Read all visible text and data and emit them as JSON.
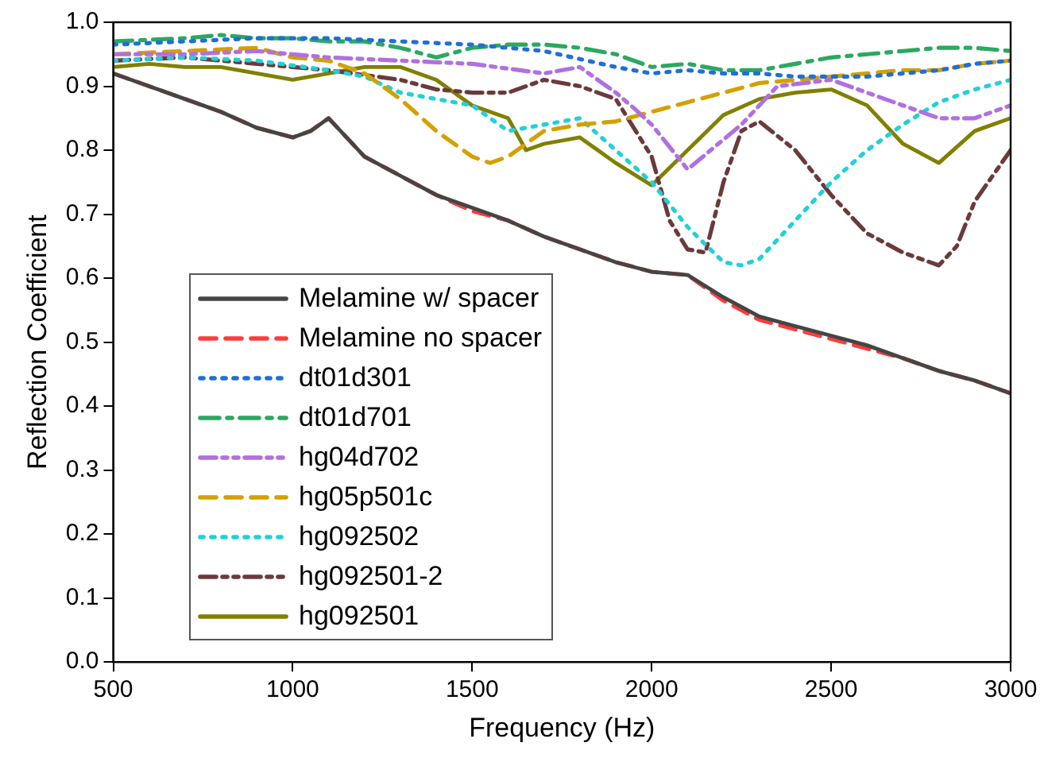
{
  "chart_data": {
    "type": "line",
    "xlabel": "Frequency (Hz)",
    "ylabel": "Reflection Coefficient",
    "xlim": [
      500,
      3000
    ],
    "xticks": [
      500,
      1000,
      1500,
      2000,
      2500,
      3000
    ],
    "ylim": [
      0,
      1
    ],
    "yticks": [
      {
        "value": 0,
        "label": "0.0"
      },
      0.1,
      0.2,
      0.3,
      0.4,
      0.5,
      0.6,
      0.7,
      0.8,
      0.9,
      {
        "value": 1,
        "label": "1.0"
      }
    ],
    "grid": false,
    "legend": "bottom left",
    "marker": "none",
    "series": [
      {
        "name": "Melamine w/ spacer",
        "color": "#454545",
        "line_style": "solid",
        "x": [
          500,
          600,
          700,
          800,
          900,
          1000,
          1050,
          1100,
          1150,
          1200,
          1300,
          1400,
          1500,
          1600,
          1700,
          1800,
          1900,
          2000,
          2100,
          2200,
          2300,
          2400,
          2500,
          2600,
          2700,
          2800,
          2900,
          3000
        ],
        "values": [
          0.92,
          0.9,
          0.88,
          0.86,
          0.835,
          0.82,
          0.83,
          0.85,
          0.82,
          0.79,
          0.76,
          0.73,
          0.71,
          0.69,
          0.665,
          0.645,
          0.625,
          0.61,
          0.605,
          0.57,
          0.54,
          0.525,
          0.51,
          0.495,
          0.475,
          0.455,
          0.44,
          0.42
        ]
      },
      {
        "name": "Melamine no spacer",
        "color": "#ff3b3b",
        "line_style": "dashed",
        "x": [
          500,
          600,
          700,
          800,
          900,
          1000,
          1050,
          1100,
          1150,
          1200,
          1300,
          1400,
          1500,
          1600,
          1700,
          1800,
          1900,
          2000,
          2100,
          2200,
          2300,
          2400,
          2500,
          2600,
          2700,
          2800,
          2900,
          3000
        ],
        "values": [
          0.92,
          0.9,
          0.88,
          0.86,
          0.835,
          0.82,
          0.83,
          0.85,
          0.82,
          0.79,
          0.76,
          0.73,
          0.705,
          0.69,
          0.665,
          0.645,
          0.625,
          0.61,
          0.605,
          0.565,
          0.535,
          0.52,
          0.505,
          0.49,
          0.475,
          0.455,
          0.44,
          0.42
        ]
      },
      {
        "name": "dt01d301",
        "color": "#1f6fd6",
        "line_style": "dotted",
        "x": [
          500,
          700,
          900,
          1100,
          1300,
          1500,
          1700,
          1900,
          2000,
          2100,
          2200,
          2300,
          2400,
          2500,
          2600,
          2700,
          2800,
          2900,
          3000
        ],
        "values": [
          0.965,
          0.97,
          0.975,
          0.975,
          0.97,
          0.965,
          0.955,
          0.93,
          0.92,
          0.925,
          0.92,
          0.92,
          0.915,
          0.915,
          0.915,
          0.92,
          0.925,
          0.935,
          0.94
        ]
      },
      {
        "name": "dt01d701",
        "color": "#2ca860",
        "line_style": "dashdot",
        "x": [
          500,
          700,
          800,
          900,
          1000,
          1100,
          1200,
          1300,
          1400,
          1500,
          1600,
          1700,
          1800,
          1900,
          2000,
          2100,
          2200,
          2300,
          2400,
          2500,
          2600,
          2700,
          2800,
          2900,
          3000
        ],
        "values": [
          0.97,
          0.975,
          0.98,
          0.975,
          0.975,
          0.97,
          0.97,
          0.96,
          0.945,
          0.96,
          0.965,
          0.965,
          0.96,
          0.95,
          0.93,
          0.935,
          0.925,
          0.925,
          0.935,
          0.945,
          0.95,
          0.955,
          0.96,
          0.96,
          0.955
        ]
      },
      {
        "name": "hg04d702",
        "color": "#b070e0",
        "line_style": "dashdotdot",
        "x": [
          500,
          700,
          900,
          1100,
          1300,
          1500,
          1700,
          1800,
          1900,
          1950,
          2000,
          2100,
          2250,
          2350,
          2500,
          2600,
          2700,
          2800,
          2900,
          3000
        ],
        "values": [
          0.95,
          0.95,
          0.955,
          0.945,
          0.94,
          0.935,
          0.92,
          0.93,
          0.89,
          0.866,
          0.84,
          0.77,
          0.84,
          0.9,
          0.91,
          0.89,
          0.87,
          0.85,
          0.85,
          0.87
        ]
      },
      {
        "name": "hg05p501c",
        "color": "#d4a000",
        "line_style": "dashed",
        "x": [
          500,
          700,
          900,
          1000,
          1100,
          1200,
          1300,
          1400,
          1500,
          1550,
          1600,
          1700,
          1800,
          1900,
          2000,
          2100,
          2200,
          2300,
          2400,
          2500,
          2600,
          2700,
          2800,
          2900,
          3000
        ],
        "values": [
          0.95,
          0.955,
          0.96,
          0.945,
          0.94,
          0.92,
          0.88,
          0.83,
          0.79,
          0.78,
          0.79,
          0.83,
          0.84,
          0.845,
          0.86,
          0.875,
          0.89,
          0.905,
          0.91,
          0.915,
          0.92,
          0.925,
          0.925,
          0.935,
          0.94
        ]
      },
      {
        "name": "hg092502",
        "color": "#22d0d8",
        "line_style": "dotted",
        "x": [
          500,
          700,
          900,
          1100,
          1200,
          1300,
          1400,
          1500,
          1600,
          1700,
          1800,
          1900,
          2000,
          2100,
          2200,
          2250,
          2300,
          2400,
          2500,
          2600,
          2700,
          2800,
          2900,
          3000
        ],
        "values": [
          0.94,
          0.945,
          0.94,
          0.925,
          0.915,
          0.89,
          0.88,
          0.87,
          0.83,
          0.84,
          0.85,
          0.8,
          0.75,
          0.68,
          0.625,
          0.62,
          0.63,
          0.69,
          0.75,
          0.8,
          0.84,
          0.875,
          0.895,
          0.91
        ]
      },
      {
        "name": "hg092501-2",
        "color": "#6b3a3a",
        "line_style": "dashdotdot",
        "x": [
          500,
          700,
          900,
          1100,
          1300,
          1400,
          1500,
          1600,
          1700,
          1800,
          1900,
          2000,
          2050,
          2100,
          2150,
          2200,
          2250,
          2300,
          2400,
          2500,
          2600,
          2700,
          2800,
          2850,
          2900,
          3000
        ],
        "values": [
          0.94,
          0.945,
          0.935,
          0.925,
          0.91,
          0.895,
          0.89,
          0.89,
          0.91,
          0.9,
          0.88,
          0.79,
          0.69,
          0.645,
          0.64,
          0.75,
          0.83,
          0.845,
          0.8,
          0.73,
          0.67,
          0.64,
          0.62,
          0.65,
          0.72,
          0.8
        ]
      },
      {
        "name": "hg092501",
        "color": "#808000",
        "line_style": "solid",
        "x": [
          500,
          600,
          700,
          800,
          900,
          1000,
          1100,
          1200,
          1300,
          1400,
          1500,
          1600,
          1650,
          1700,
          1800,
          1900,
          2000,
          2100,
          2200,
          2300,
          2400,
          2500,
          2600,
          2700,
          2800,
          2900,
          3000
        ],
        "values": [
          0.93,
          0.935,
          0.93,
          0.93,
          0.92,
          0.91,
          0.92,
          0.93,
          0.93,
          0.91,
          0.87,
          0.85,
          0.8,
          0.81,
          0.82,
          0.78,
          0.745,
          0.8,
          0.855,
          0.88,
          0.89,
          0.895,
          0.87,
          0.81,
          0.78,
          0.83,
          0.85
        ]
      }
    ]
  }
}
